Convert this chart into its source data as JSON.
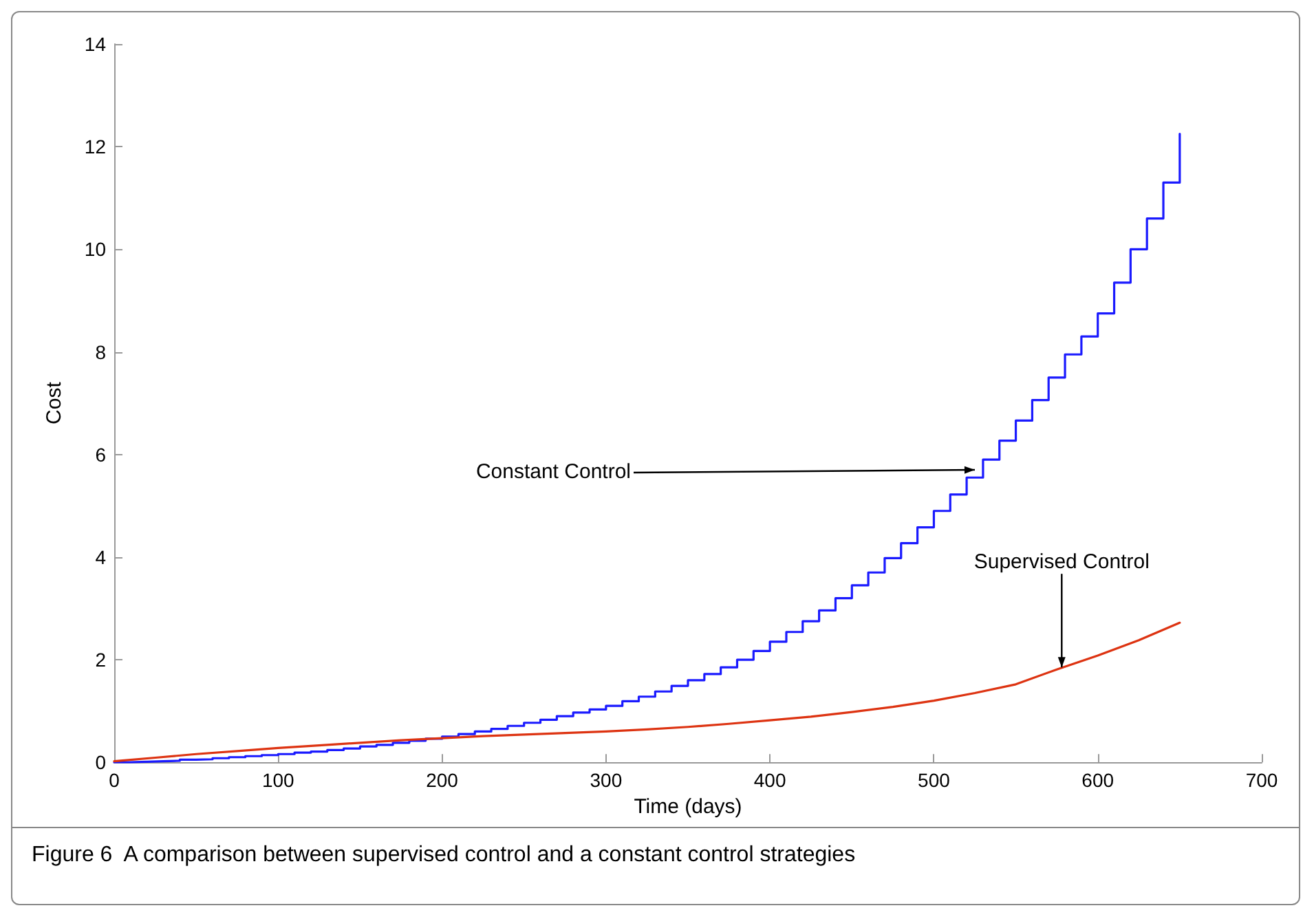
{
  "chart_data": {
    "type": "line",
    "xlabel": "Time (days)",
    "ylabel": "Cost",
    "xlim": [
      0,
      700
    ],
    "xticks": [
      0,
      100,
      200,
      300,
      400,
      500,
      600,
      700
    ],
    "ylim": [
      0,
      14
    ],
    "yticks": [
      0,
      2,
      4,
      6,
      8,
      10,
      12,
      14
    ],
    "grid": false,
    "marker": "none",
    "line_style": "solid",
    "series": [
      {
        "type": "step",
        "color": "#1a1aff",
        "x": [
          0,
          10,
          20,
          30,
          40,
          50,
          60,
          70,
          80,
          90,
          100,
          110,
          120,
          130,
          140,
          150,
          160,
          170,
          180,
          190,
          200,
          210,
          220,
          230,
          240,
          250,
          260,
          270,
          280,
          290,
          300,
          310,
          320,
          330,
          340,
          350,
          360,
          370,
          380,
          390,
          400,
          410,
          420,
          430,
          440,
          450,
          460,
          470,
          480,
          490,
          500,
          510,
          520,
          530,
          540,
          550,
          560,
          570,
          580,
          590,
          600,
          610,
          620,
          630,
          640,
          650
        ],
        "values": [
          0,
          0.01,
          0.02,
          0.03,
          0.05,
          0.06,
          0.08,
          0.1,
          0.12,
          0.14,
          0.16,
          0.19,
          0.21,
          0.24,
          0.27,
          0.31,
          0.34,
          0.38,
          0.42,
          0.46,
          0.5,
          0.55,
          0.6,
          0.65,
          0.71,
          0.77,
          0.83,
          0.9,
          0.97,
          1.03,
          1.1,
          1.19,
          1.28,
          1.38,
          1.49,
          1.6,
          1.72,
          1.85,
          2.0,
          2.17,
          2.35,
          2.54,
          2.75,
          2.96,
          3.2,
          3.45,
          3.7,
          3.98,
          4.27,
          4.58,
          4.9,
          5.22,
          5.55,
          5.9,
          6.27,
          6.66,
          7.06,
          7.5,
          7.95,
          8.3,
          8.75,
          9.35,
          10.0,
          10.6,
          11.3,
          12.25
        ]
      },
      {
        "type": "line",
        "color": "#dd3311",
        "x": [
          0,
          25,
          50,
          75,
          100,
          125,
          150,
          175,
          200,
          225,
          250,
          275,
          300,
          325,
          350,
          375,
          400,
          425,
          450,
          475,
          500,
          525,
          550,
          575,
          600,
          625,
          650
        ],
        "values": [
          0.02,
          0.09,
          0.16,
          0.22,
          0.28,
          0.33,
          0.38,
          0.43,
          0.47,
          0.51,
          0.54,
          0.57,
          0.6,
          0.64,
          0.69,
          0.75,
          0.82,
          0.89,
          0.98,
          1.08,
          1.2,
          1.35,
          1.52,
          1.81,
          2.08,
          2.38,
          2.72
        ]
      }
    ],
    "annotations": [
      {
        "text": "Constant Control",
        "x": 525,
        "y": 5.7
      },
      {
        "text": "Supervised Control",
        "x": 578,
        "y": 1.85
      },
      "Figure 6  A comparison between supervised control and a constant control strategies"
    ]
  }
}
